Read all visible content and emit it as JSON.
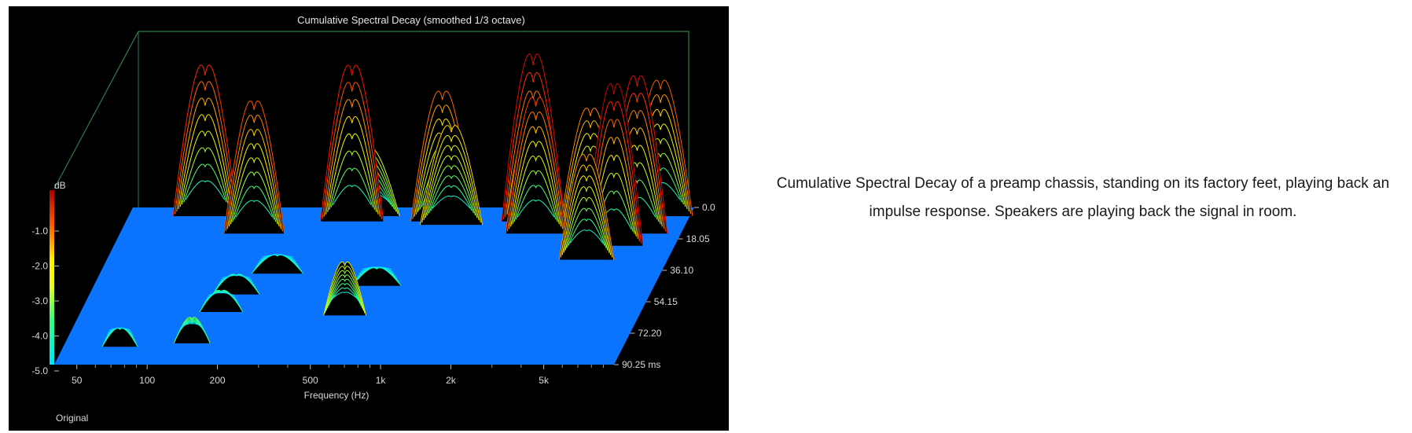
{
  "chart_data": {
    "type": "waterfall",
    "title": "Cumulative Spectral Decay (smoothed 1/3 octave)",
    "xlabel": "Frequency (Hz)",
    "x_scale": "log",
    "x_ticks": [
      "50",
      "100",
      "200",
      "500",
      "1k",
      "2k",
      "5k"
    ],
    "x_tick_values": [
      50,
      100,
      200,
      500,
      1000,
      2000,
      5000
    ],
    "xlim": [
      40,
      10000
    ],
    "zlabel": "dB",
    "z_ticks": [
      "-1.0",
      "-2.0",
      "-3.0",
      "-4.0",
      "-5.0"
    ],
    "zlim": [
      -5.0,
      0.0
    ],
    "time_ticks": [
      "0.0",
      "18.05",
      "36.10",
      "54.15",
      "72.20",
      "90.25 ms"
    ],
    "time_values": [
      0.0,
      18.05,
      36.1,
      54.15,
      72.2,
      90.25
    ],
    "time_unit": "ms",
    "footer": "Original",
    "colors": {
      "floor": "#0b74ff",
      "background": "#000000",
      "frame": "#2e7d46"
    },
    "colorscale": [
      "#00e5ff",
      "#30ff80",
      "#c8ff20",
      "#ffee00",
      "#ff7a00",
      "#ff1000",
      "#a00000"
    ],
    "peaks": [
      {
        "freq": 70,
        "time": 80,
        "height": -4.2
      },
      {
        "freq": 85,
        "time": 5,
        "height": -1.0
      },
      {
        "freq": 150,
        "time": 15,
        "height": -1.3
      },
      {
        "freq": 140,
        "time": 78,
        "height": -3.9
      },
      {
        "freq": 160,
        "time": 60,
        "height": -4.2
      },
      {
        "freq": 170,
        "time": 50,
        "height": -4.3
      },
      {
        "freq": 230,
        "time": 38,
        "height": -4.4
      },
      {
        "freq": 370,
        "time": 8,
        "height": -0.8
      },
      {
        "freq": 420,
        "time": 5,
        "height": -3.2
      },
      {
        "freq": 550,
        "time": 62,
        "height": -3.0
      },
      {
        "freq": 650,
        "time": 45,
        "height": -4.4
      },
      {
        "freq": 900,
        "time": 8,
        "height": -1.5
      },
      {
        "freq": 1000,
        "time": 10,
        "height": -2.3
      },
      {
        "freq": 2200,
        "time": 8,
        "height": -0.5
      },
      {
        "freq": 2400,
        "time": 15,
        "height": -1.2
      },
      {
        "freq": 4000,
        "time": 12,
        "height": -1.7
      },
      {
        "freq": 5500,
        "time": 22,
        "height": -0.3
      },
      {
        "freq": 6500,
        "time": 15,
        "height": -0.6
      },
      {
        "freq": 7500,
        "time": 5,
        "height": -1.4
      },
      {
        "freq": 4500,
        "time": 30,
        "height": -1.8
      }
    ]
  },
  "caption": "Cumulative Spectral Decay of a preamp chassis, standing on its factory feet, playing back an impulse response. Speakers are playing back the signal in room."
}
